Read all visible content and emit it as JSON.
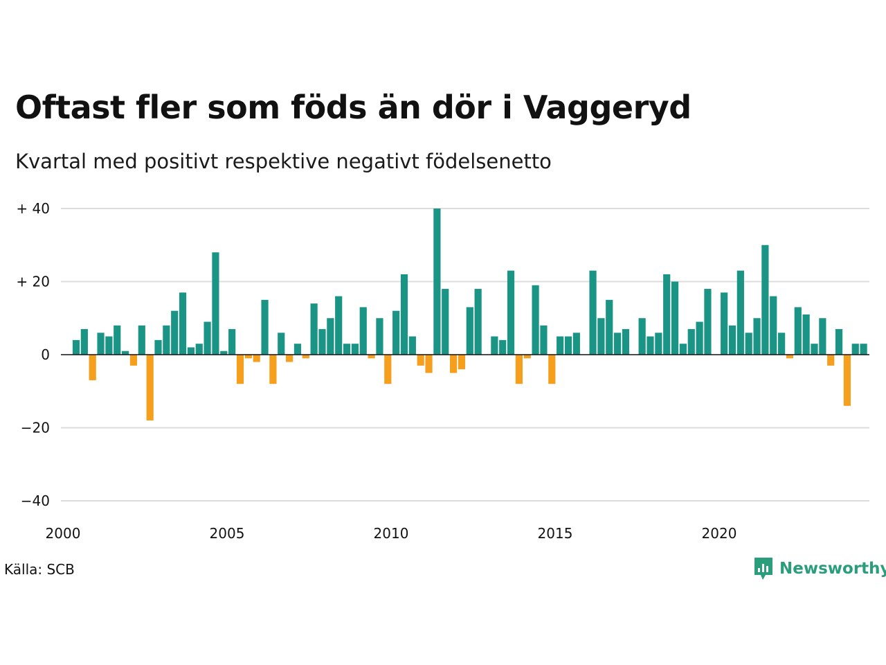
{
  "chart_data": {
    "type": "bar",
    "title": "Oftast fler som föds än dör i Vaggeryd",
    "subtitle": "Kvartal med positivt respektive negativt födelsenetto",
    "x_start_year": 2000,
    "periods_per_year": 4,
    "values": [
      4,
      7,
      -7,
      6,
      5,
      8,
      1,
      -3,
      8,
      -18,
      4,
      8,
      12,
      17,
      2,
      3,
      9,
      28,
      1,
      7,
      -8,
      -1,
      -2,
      15,
      -8,
      6,
      -2,
      3,
      -1,
      14,
      7,
      10,
      16,
      3,
      3,
      13,
      -1,
      10,
      -8,
      12,
      22,
      5,
      -3,
      -5,
      40,
      18,
      -5,
      -4,
      13,
      18,
      0,
      5,
      4,
      23,
      -8,
      -1,
      19,
      8,
      -8,
      5,
      5,
      6,
      0,
      23,
      10,
      15,
      6,
      7,
      0,
      10,
      5,
      6,
      22,
      20,
      3,
      7,
      9,
      18,
      0,
      17,
      8,
      23,
      6,
      10,
      30,
      16,
      6,
      -1,
      13,
      11,
      3,
      10,
      -3,
      7,
      -14,
      3,
      3
    ],
    "ylim": [
      -40,
      40
    ],
    "y_ticks": [
      40,
      20,
      0,
      -20,
      -40
    ],
    "y_tick_labels": [
      "+ 40",
      "+ 20",
      "0",
      "−20",
      "−40"
    ],
    "x_ticks": [
      2000,
      2005,
      2010,
      2015,
      2020
    ],
    "x_tick_labels": [
      "2000",
      "2005",
      "2010",
      "2015",
      "2020"
    ],
    "grid": true,
    "colors": {
      "positive": "#1a9585",
      "negative": "#f59f1d",
      "grid": "#dddddd",
      "axis": "#111111"
    }
  },
  "footer": {
    "source": "Källa: SCB",
    "brand": "Newsworthy",
    "brand_color": "#2a9d7c"
  }
}
